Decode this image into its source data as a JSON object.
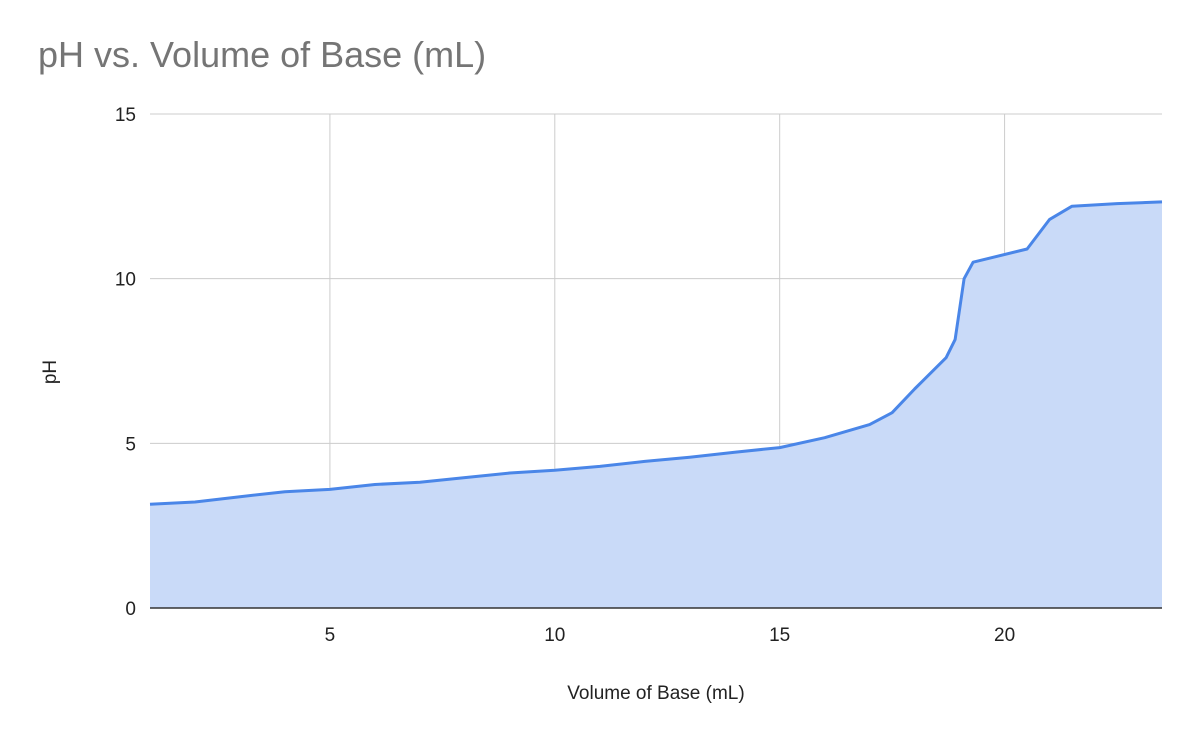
{
  "chart_data": {
    "type": "area",
    "title": "pH vs. Volume of Base (mL)",
    "xlabel": "Volume of Base (mL)",
    "ylabel": "pH",
    "xlim": [
      1,
      23.5
    ],
    "ylim": [
      0,
      15
    ],
    "x_ticks": [
      5,
      10,
      15,
      20
    ],
    "y_ticks": [
      0,
      5,
      10,
      15
    ],
    "grid": true,
    "legend": "none",
    "colors": {
      "line": "#4a86e8",
      "fill": "#c9daf8",
      "grid": "#cccccc",
      "baseline": "#333333"
    },
    "series": [
      {
        "x": [
          1,
          2,
          3,
          4,
          5,
          6,
          7,
          8,
          9,
          10,
          11,
          12,
          13,
          14,
          15,
          16,
          17,
          17.5,
          18,
          18.7,
          18.9,
          19.1,
          19.3,
          20.5,
          21,
          21.5,
          22.5,
          23.5
        ],
        "y": [
          3.15,
          3.22,
          3.38,
          3.53,
          3.6,
          3.75,
          3.82,
          3.96,
          4.1,
          4.18,
          4.3,
          4.45,
          4.58,
          4.73,
          4.87,
          5.17,
          5.57,
          5.93,
          6.65,
          7.6,
          8.15,
          10.0,
          10.5,
          10.9,
          11.8,
          12.2,
          12.28,
          12.33
        ]
      }
    ]
  }
}
